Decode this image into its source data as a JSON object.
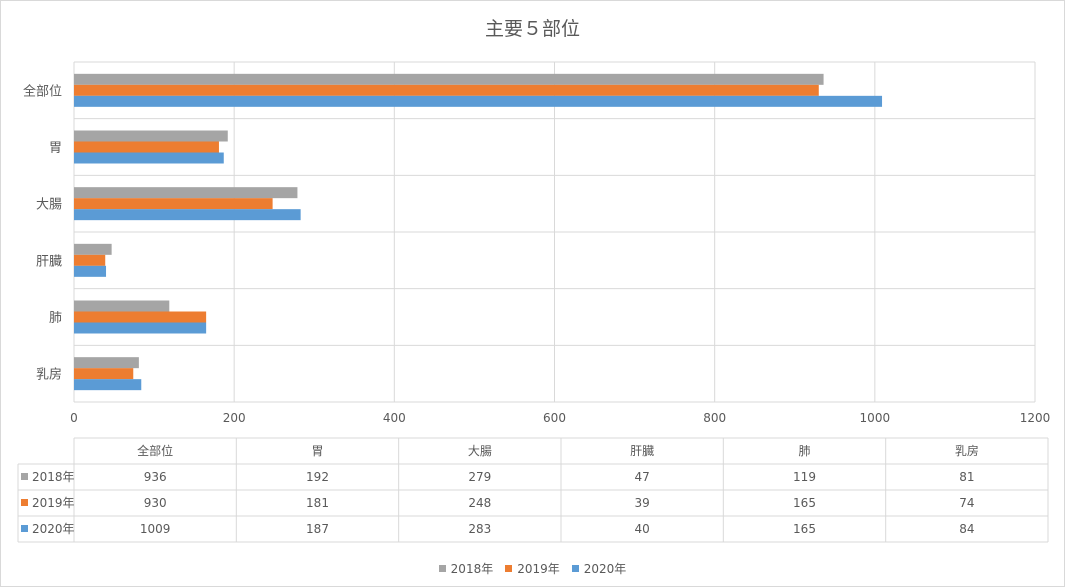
{
  "chart_data": {
    "type": "bar",
    "orientation": "horizontal",
    "title": "主要５部位",
    "categories": [
      "全部位",
      "胃",
      "大腸",
      "肝臓",
      "肺",
      "乳房"
    ],
    "series": [
      {
        "name": "2018年",
        "values": [
          936,
          192,
          279,
          47,
          119,
          81
        ],
        "color": "#A5A5A5"
      },
      {
        "name": "2019年",
        "values": [
          930,
          181,
          248,
          39,
          165,
          74
        ],
        "color": "#ED7D31"
      },
      {
        "name": "2020年",
        "values": [
          1009,
          187,
          283,
          40,
          165,
          84
        ],
        "color": "#5B9BD5"
      }
    ],
    "xlim": [
      0,
      1200
    ],
    "xticks": [
      0,
      200,
      400,
      600,
      800,
      1000,
      1200
    ],
    "grid": true,
    "legend_position": "bottom",
    "data_table": true
  }
}
